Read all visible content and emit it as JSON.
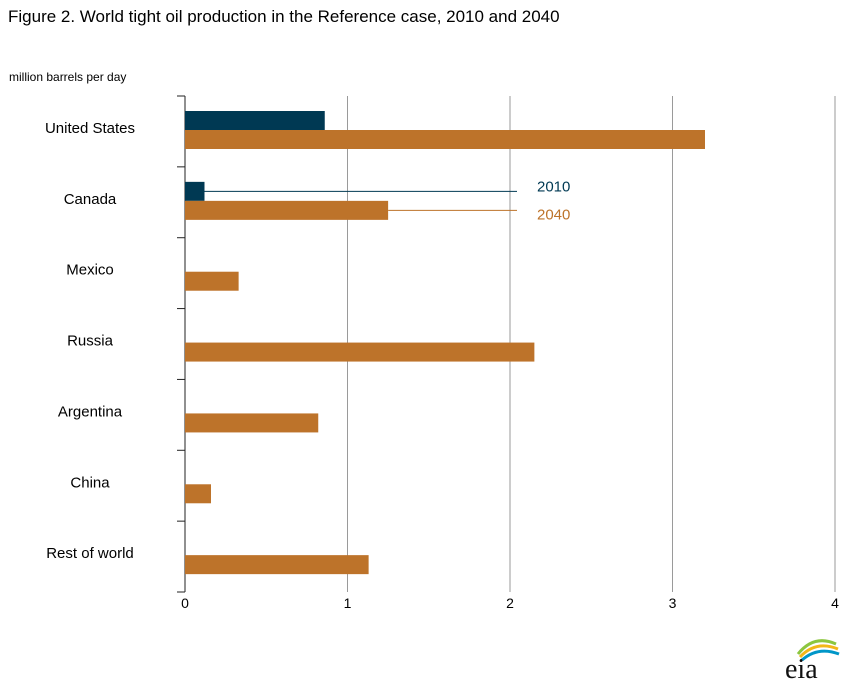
{
  "title": "Figure 2. World tight oil production in the Reference case, 2010 and 2040",
  "logo_text": "eia",
  "chart_data": {
    "type": "bar",
    "orientation": "horizontal",
    "title": "Figure 2. World tight oil production in the Reference case, 2010 and 2040",
    "unit_label": "million barrels  per day",
    "categories": [
      "United States",
      "Canada",
      "Mexico",
      "Russia",
      "Argentina",
      "China",
      "Rest of world"
    ],
    "series": [
      {
        "name": "2010",
        "color": "#003953",
        "values": [
          0.86,
          0.12,
          0,
          0,
          0,
          0,
          0
        ]
      },
      {
        "name": "2040",
        "color": "#bd732a",
        "values": [
          3.2,
          1.25,
          0.33,
          2.15,
          0.82,
          0.16,
          1.13
        ]
      }
    ],
    "xlim": [
      0,
      4
    ],
    "x_ticks": [
      0,
      1,
      2,
      3,
      4
    ],
    "grid": "vertical",
    "legend": "inline labels right of Canada bars"
  }
}
